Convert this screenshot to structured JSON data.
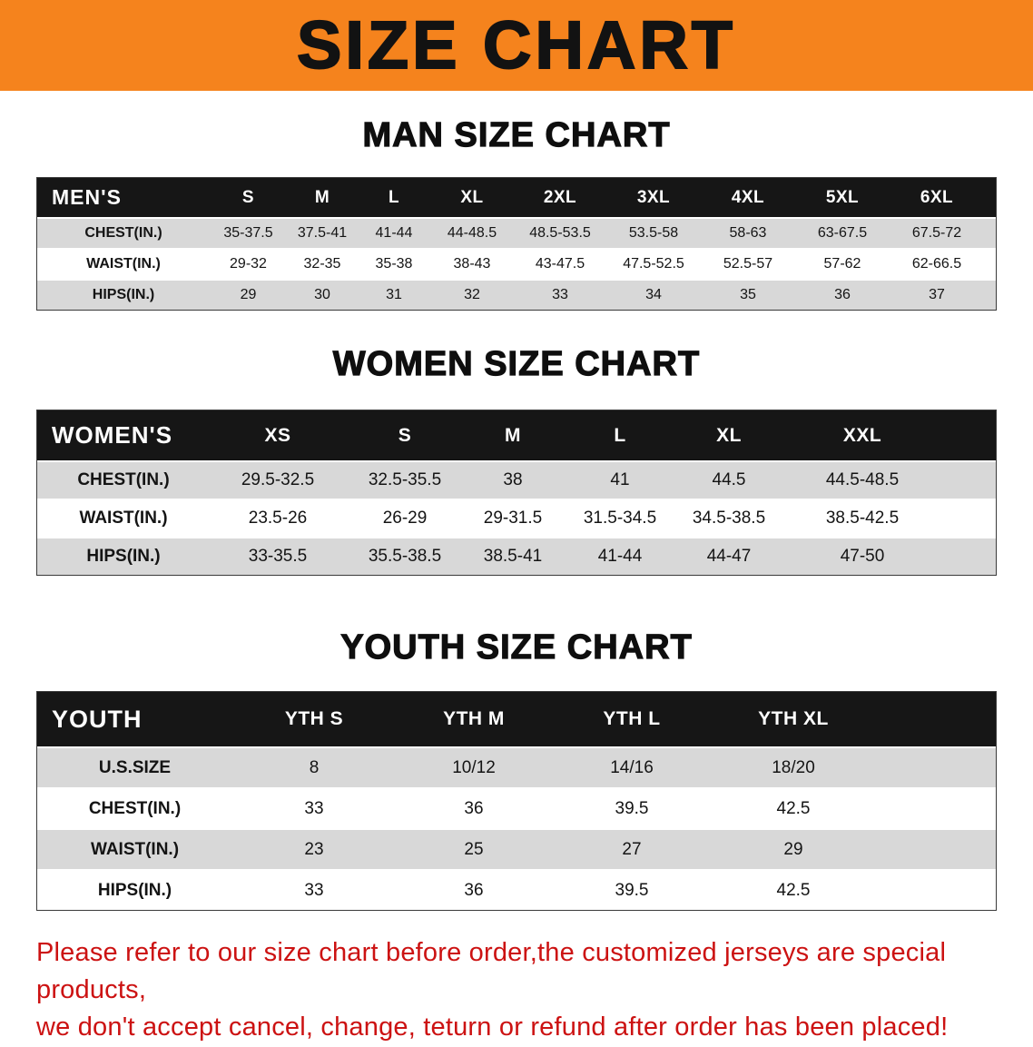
{
  "banner": {
    "title": "SIZE CHART"
  },
  "colors": {
    "banner_bg": "#f5831d",
    "table_header_bg": "#161616",
    "row_shade": "#d8d8d8",
    "notice_text": "#cc1212"
  },
  "men": {
    "heading": "MAN SIZE CHART",
    "label": "MEN'S",
    "sizes": [
      "S",
      "M",
      "L",
      "XL",
      "2XL",
      "3XL",
      "4XL",
      "5XL",
      "6XL"
    ],
    "rows": [
      {
        "label": "CHEST(IN.)",
        "values": [
          "35-37.5",
          "37.5-41",
          "41-44",
          "44-48.5",
          "48.5-53.5",
          "53.5-58",
          "58-63",
          "63-67.5",
          "67.5-72"
        ]
      },
      {
        "label": "WAIST(IN.)",
        "values": [
          "29-32",
          "32-35",
          "35-38",
          "38-43",
          "43-47.5",
          "47.5-52.5",
          "52.5-57",
          "57-62",
          "62-66.5"
        ]
      },
      {
        "label": "HIPS(IN.)",
        "values": [
          "29",
          "30",
          "31",
          "32",
          "33",
          "34",
          "35",
          "36",
          "37"
        ]
      }
    ]
  },
  "women": {
    "heading": "WOMEN SIZE CHART",
    "label": "WOMEN'S",
    "sizes": [
      "XS",
      "S",
      "M",
      "L",
      "XL",
      "XXL"
    ],
    "rows": [
      {
        "label": "CHEST(IN.)",
        "values": [
          "29.5-32.5",
          "32.5-35.5",
          "38",
          "41",
          "44.5",
          "44.5-48.5"
        ]
      },
      {
        "label": "WAIST(IN.)",
        "values": [
          "23.5-26",
          "26-29",
          "29-31.5",
          "31.5-34.5",
          "34.5-38.5",
          "38.5-42.5"
        ]
      },
      {
        "label": "HIPS(IN.)",
        "values": [
          "33-35.5",
          "35.5-38.5",
          "38.5-41",
          "41-44",
          "44-47",
          "47-50"
        ]
      }
    ]
  },
  "youth": {
    "heading": "YOUTH SIZE CHART",
    "label": "YOUTH",
    "sizes": [
      "YTH S",
      "YTH M",
      "YTH L",
      "YTH XL"
    ],
    "rows": [
      {
        "label": "U.S.SIZE",
        "values": [
          "8",
          "10/12",
          "14/16",
          "18/20"
        ]
      },
      {
        "label": "CHEST(IN.)",
        "values": [
          "33",
          "36",
          "39.5",
          "42.5"
        ]
      },
      {
        "label": "WAIST(IN.)",
        "values": [
          "23",
          "25",
          "27",
          "29"
        ]
      },
      {
        "label": "HIPS(IN.)",
        "values": [
          "33",
          "36",
          "39.5",
          "42.5"
        ]
      }
    ]
  },
  "notice": {
    "line1": "Please refer to our size chart before order,the customized jerseys are special products,",
    "line2": "we don't accept cancel, change, teturn or refund after order has been placed!"
  }
}
